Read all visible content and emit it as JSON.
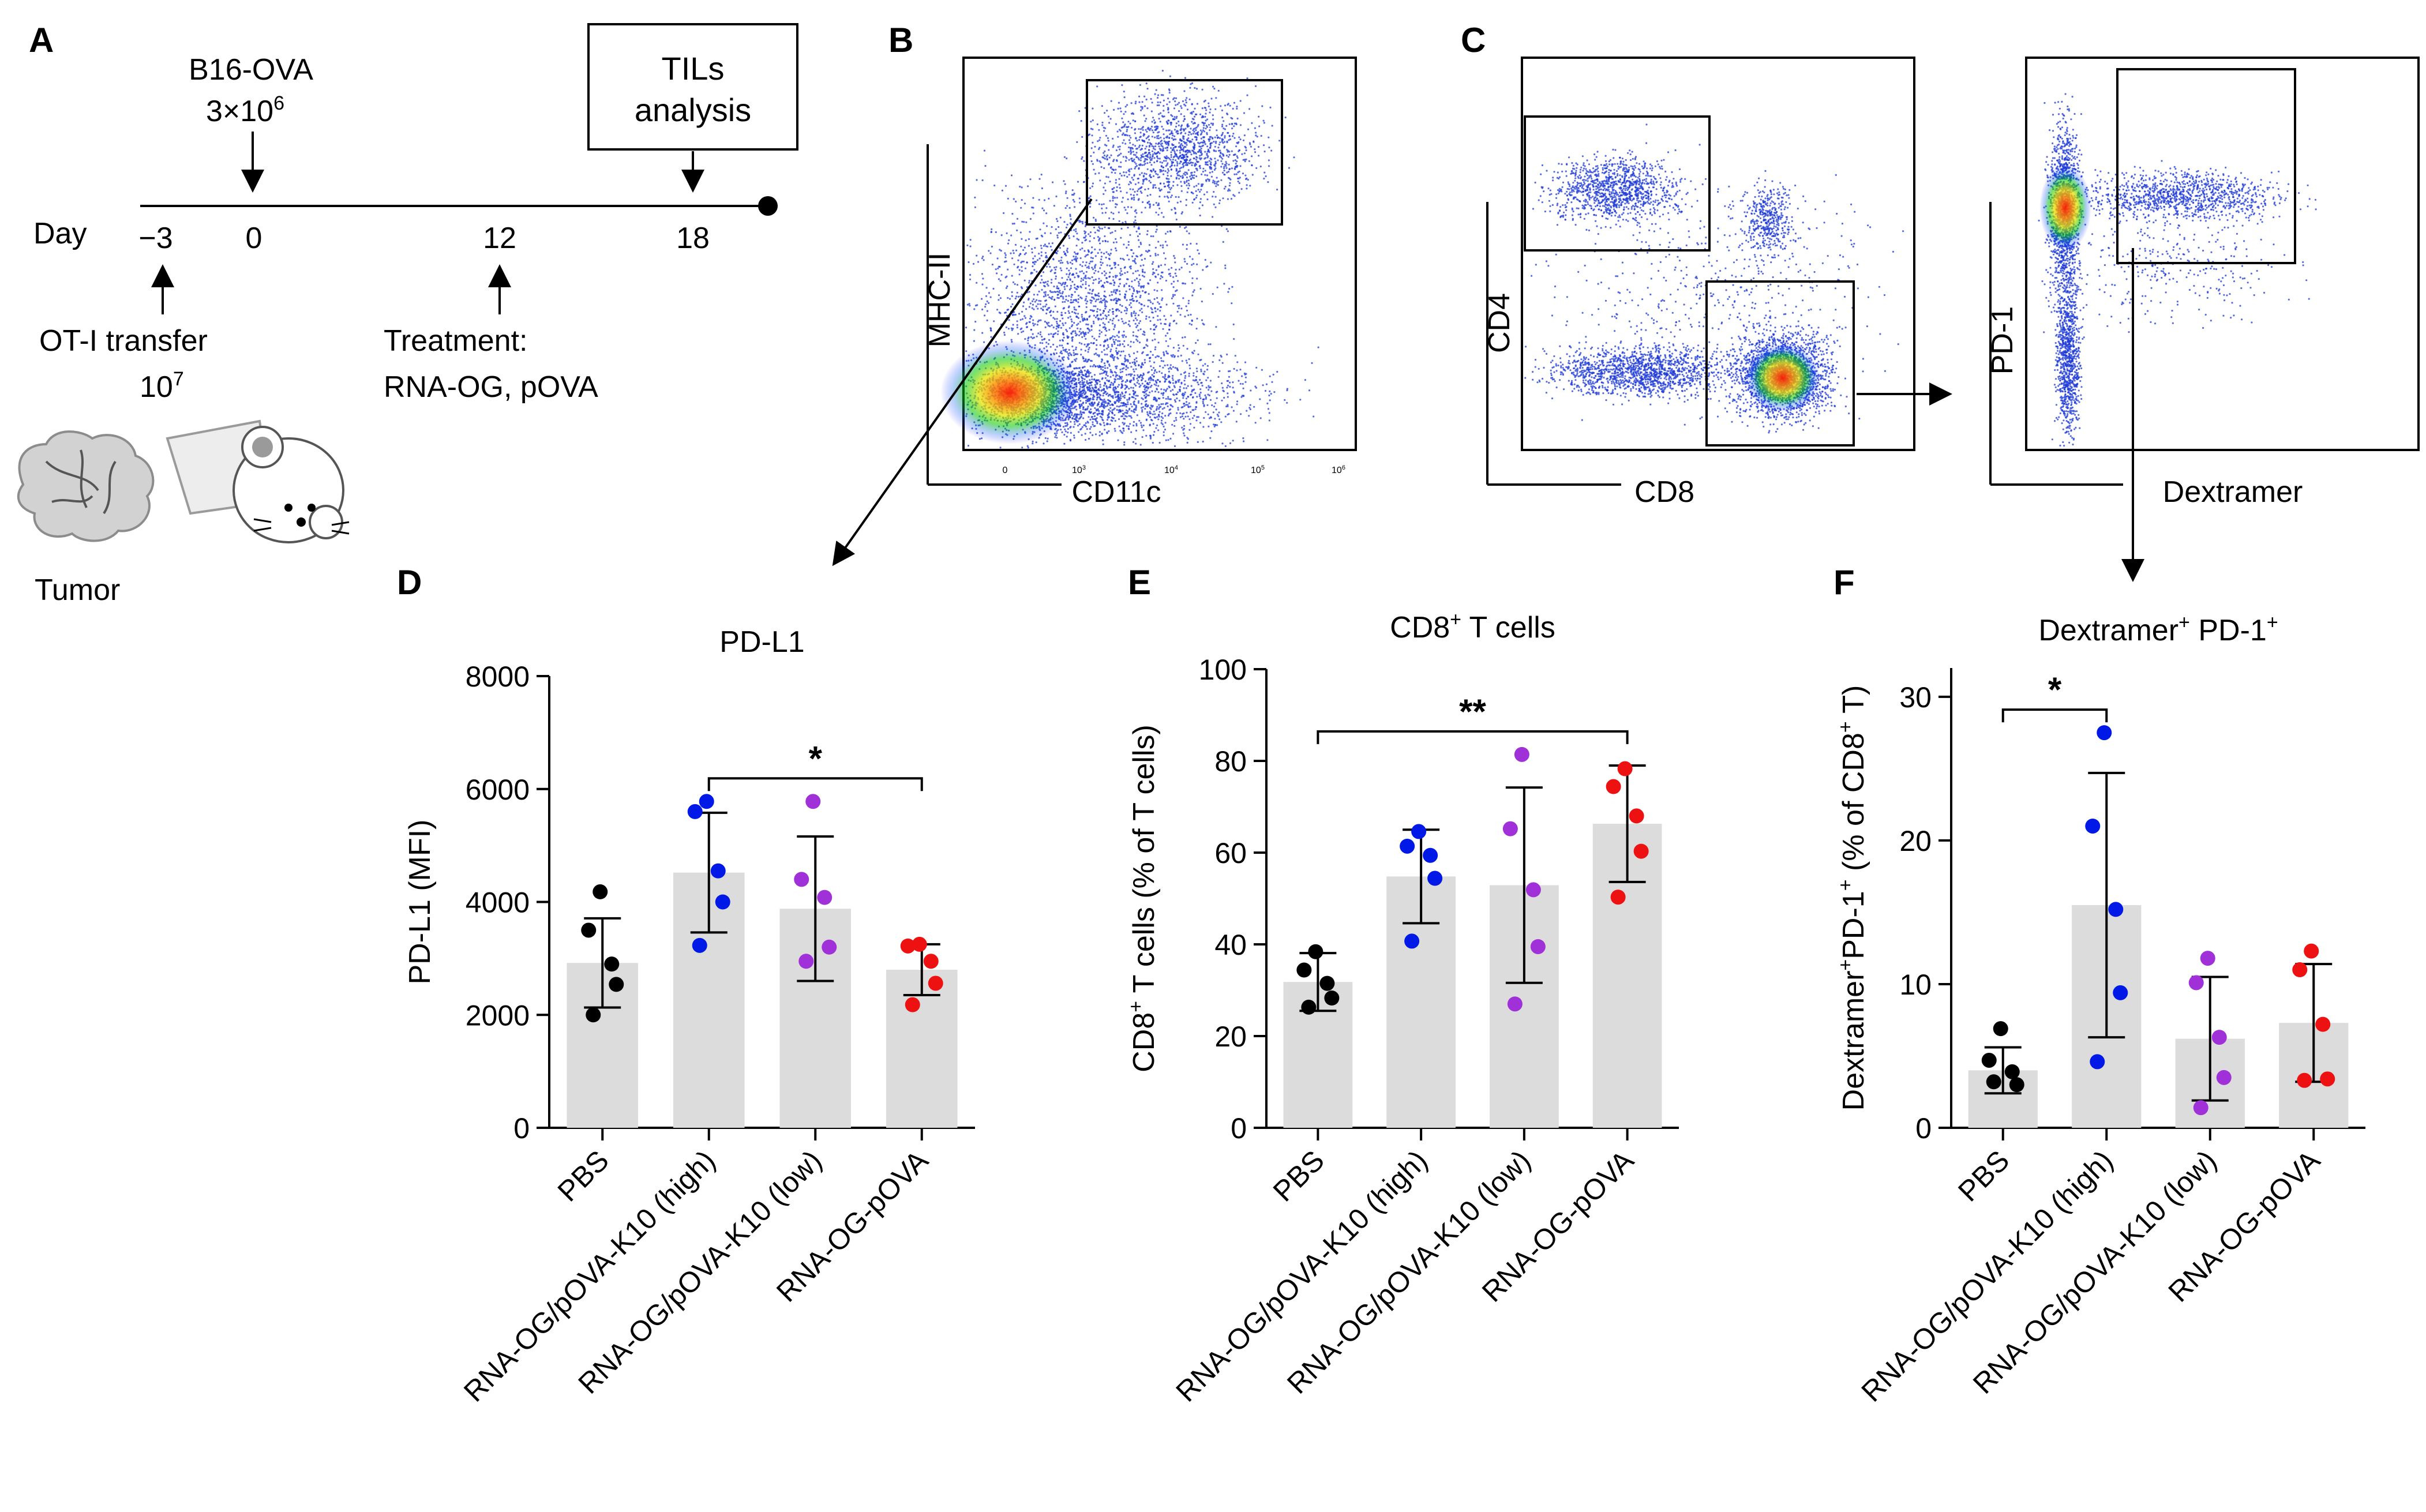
{
  "panels": {
    "A": {
      "letter": "A",
      "day_label": "Day",
      "days": [
        "−3",
        "0",
        "12",
        "18"
      ],
      "top_events": {
        "b16": {
          "line1": "B16-OVA",
          "line2_base": "3×10",
          "line2_sup": "6"
        },
        "tils": {
          "line1": "TILs",
          "line2": "analysis"
        }
      },
      "bottom_events": {
        "transfer": {
          "line1": "OT-I transfer",
          "line2_base": "10",
          "line2_sup": "7"
        },
        "treatment": {
          "line1": "Treatment:",
          "line2": "RNA-OG, pOVA"
        }
      },
      "tumor_label": "Tumor"
    },
    "B": {
      "letter": "B",
      "xlabel": "CD11c",
      "ylabel": "MHC-II",
      "tick_labels": [
        "0",
        "10",
        "10",
        "10",
        "10"
      ],
      "tick_sups": [
        "",
        "3",
        "4",
        "5",
        "6"
      ]
    },
    "C": {
      "letter": "C",
      "left_xlabel": "CD8",
      "left_ylabel": "CD4",
      "right_xlabel": "Dextramer",
      "right_ylabel": "PD-1"
    },
    "D": {
      "letter": "D"
    },
    "E": {
      "letter": "E"
    },
    "F": {
      "letter": "F"
    }
  },
  "chart_data": [
    {
      "id": "D",
      "type": "bar",
      "title": "PD-L1",
      "ylabel": "PD-L1 (MFI)",
      "ylim": [
        0,
        8000
      ],
      "yticks": [
        0,
        2000,
        4000,
        6000,
        8000
      ],
      "categories": [
        "PBS",
        "RNA-OG/pOVA-K10 (high)",
        "RNA-OG/pOVA-K10 (low)",
        "RNA-OG-pOVA"
      ],
      "means": [
        2920,
        4520,
        3880,
        2800
      ],
      "sd": [
        790,
        1060,
        1280,
        450
      ],
      "points": [
        [
          4180,
          3500,
          2900,
          2540,
          2000
        ],
        [
          5780,
          5600,
          4550,
          4000,
          3230
        ],
        [
          5780,
          4400,
          4080,
          3200,
          2950
        ],
        [
          3250,
          3220,
          2950,
          2560,
          2180
        ]
      ],
      "point_colors": [
        "#000000",
        "#0019e6",
        "#a030d8",
        "#ee1111"
      ],
      "significance": [
        {
          "from": 1,
          "to": 3,
          "label": "*"
        }
      ]
    },
    {
      "id": "E",
      "type": "bar",
      "title_base": "CD8",
      "title_sup": "+",
      "title_rest": " T cells",
      "ylabel_base": "CD8",
      "ylabel_sup": "+",
      "ylabel_rest": " T cells (% of T cells)",
      "ylim": [
        0,
        100
      ],
      "yticks": [
        0,
        20,
        40,
        60,
        80,
        100
      ],
      "categories": [
        "PBS",
        "RNA-OG/pOVA-K10 (high)",
        "RNA-OG/pOVA-K10 (low)",
        "RNA-OG-pOVA"
      ],
      "means": [
        31.8,
        54.8,
        52.9,
        66.3
      ],
      "sd": [
        6.3,
        10.2,
        21.3,
        12.7
      ],
      "points": [
        [
          38.4,
          34.4,
          31.5,
          28.3,
          26.3
        ],
        [
          64.6,
          61.4,
          59.4,
          54.4,
          40.7
        ],
        [
          81.4,
          65.2,
          51.9,
          39.5,
          27.0
        ],
        [
          78.3,
          74.4,
          68.0,
          60.3,
          50.3
        ]
      ],
      "point_colors": [
        "#000000",
        "#0019e6",
        "#a030d8",
        "#ee1111"
      ],
      "significance": [
        {
          "from": 0,
          "to": 3,
          "label": "**"
        }
      ]
    },
    {
      "id": "F",
      "type": "bar",
      "title_base": "Dextramer",
      "title_sup": "+",
      "title_mid": " PD-1",
      "title_sup2": "+",
      "ylabel_base": "Dextramer",
      "ylabel_sup": "+",
      "ylabel_mid": "PD-1",
      "ylabel_sup2": "+",
      "ylabel_mid2": " (% of CD8",
      "ylabel_sup3": "+",
      "ylabel_end": " T)",
      "ylim": [
        0,
        32
      ],
      "yticks": [
        0,
        10,
        20,
        30
      ],
      "categories": [
        "PBS",
        "RNA-OG/pOVA-K10 (high)",
        "RNA-OG/pOVA-K10 (low)",
        "RNA-OG-pOVA"
      ],
      "means": [
        4.0,
        15.5,
        6.2,
        7.3
      ],
      "sd": [
        1.6,
        9.2,
        4.3,
        4.1
      ],
      "points": [
        [
          6.9,
          4.7,
          3.9,
          3.0,
          3.2
        ],
        [
          27.5,
          21.0,
          15.2,
          9.4,
          4.6
        ],
        [
          11.8,
          10.1,
          6.3,
          3.5,
          1.4
        ],
        [
          12.3,
          11.0,
          7.2,
          3.4,
          3.3
        ]
      ],
      "point_colors": [
        "#000000",
        "#0019e6",
        "#a030d8",
        "#ee1111"
      ],
      "significance": [
        {
          "from": 0,
          "to": 1,
          "label": "*"
        }
      ]
    }
  ]
}
